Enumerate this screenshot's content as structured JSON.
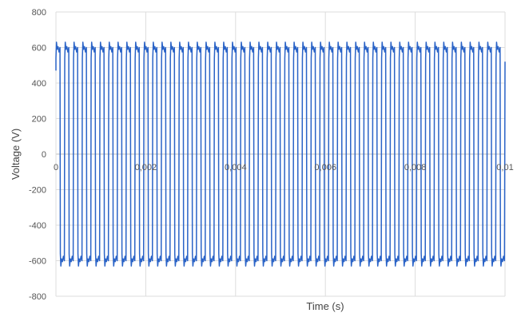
{
  "chart_data": {
    "type": "line",
    "title": "",
    "xlabel": "Time (s)",
    "ylabel": "Voltage (V)",
    "xlim": [
      0,
      0.01
    ],
    "ylim": [
      -800,
      800
    ],
    "x_ticks": [
      0,
      0.002,
      0.004,
      0.006,
      0.008,
      0.01
    ],
    "x_tick_labels": [
      "0",
      "0,002",
      "0,004",
      "0,006",
      "0,008",
      "0,01"
    ],
    "y_ticks": [
      800,
      600,
      400,
      200,
      0,
      -200,
      -400,
      -600,
      -800
    ],
    "y_tick_labels": [
      "800",
      "600",
      "400",
      "200",
      "0",
      "-200",
      "-400",
      "-600",
      "-800"
    ],
    "grid": true,
    "legend": "none",
    "series": [
      {
        "color": "#2a63c7",
        "waveform": "square",
        "cycles": 51,
        "period_s": 0.000196,
        "start_x": 0,
        "end_x": 0.01,
        "start_y": 470,
        "end_y": 520,
        "high_level": 580,
        "low_level": -580,
        "peak_high": 630,
        "peak_low": -630
      }
    ]
  }
}
